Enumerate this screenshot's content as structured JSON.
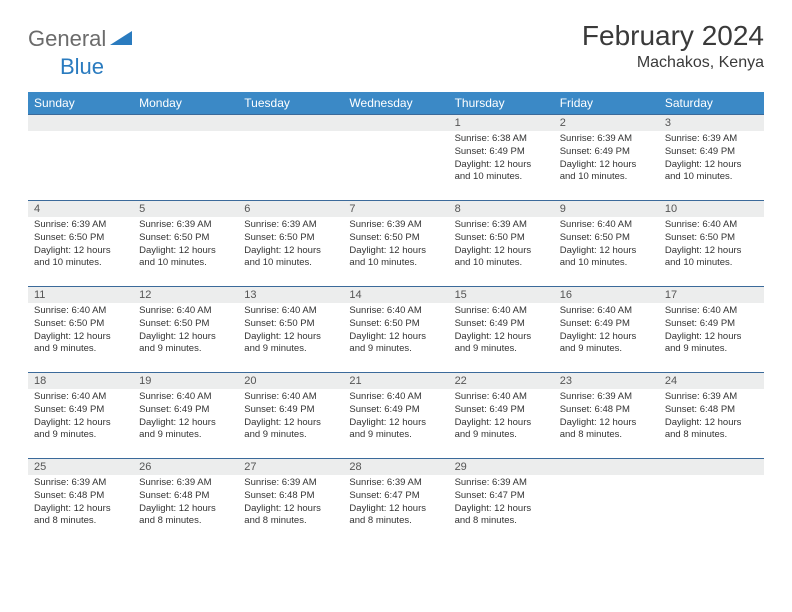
{
  "logo": {
    "part1": "General",
    "part2": "Blue"
  },
  "title": "February 2024",
  "location": "Machakos, Kenya",
  "colors": {
    "header_bg": "#3b89c6",
    "header_text": "#ffffff",
    "row_border": "#3b6a9a",
    "daynum_bg": "#eceded",
    "logo_gray": "#6b6b6b",
    "logo_blue": "#2a7bbf"
  },
  "dow": [
    "Sunday",
    "Monday",
    "Tuesday",
    "Wednesday",
    "Thursday",
    "Friday",
    "Saturday"
  ],
  "weeks": [
    [
      null,
      null,
      null,
      null,
      {
        "n": "1",
        "sr": "Sunrise: 6:38 AM",
        "ss": "Sunset: 6:49 PM",
        "d1": "Daylight: 12 hours",
        "d2": "and 10 minutes."
      },
      {
        "n": "2",
        "sr": "Sunrise: 6:39 AM",
        "ss": "Sunset: 6:49 PM",
        "d1": "Daylight: 12 hours",
        "d2": "and 10 minutes."
      },
      {
        "n": "3",
        "sr": "Sunrise: 6:39 AM",
        "ss": "Sunset: 6:49 PM",
        "d1": "Daylight: 12 hours",
        "d2": "and 10 minutes."
      }
    ],
    [
      {
        "n": "4",
        "sr": "Sunrise: 6:39 AM",
        "ss": "Sunset: 6:50 PM",
        "d1": "Daylight: 12 hours",
        "d2": "and 10 minutes."
      },
      {
        "n": "5",
        "sr": "Sunrise: 6:39 AM",
        "ss": "Sunset: 6:50 PM",
        "d1": "Daylight: 12 hours",
        "d2": "and 10 minutes."
      },
      {
        "n": "6",
        "sr": "Sunrise: 6:39 AM",
        "ss": "Sunset: 6:50 PM",
        "d1": "Daylight: 12 hours",
        "d2": "and 10 minutes."
      },
      {
        "n": "7",
        "sr": "Sunrise: 6:39 AM",
        "ss": "Sunset: 6:50 PM",
        "d1": "Daylight: 12 hours",
        "d2": "and 10 minutes."
      },
      {
        "n": "8",
        "sr": "Sunrise: 6:39 AM",
        "ss": "Sunset: 6:50 PM",
        "d1": "Daylight: 12 hours",
        "d2": "and 10 minutes."
      },
      {
        "n": "9",
        "sr": "Sunrise: 6:40 AM",
        "ss": "Sunset: 6:50 PM",
        "d1": "Daylight: 12 hours",
        "d2": "and 10 minutes."
      },
      {
        "n": "10",
        "sr": "Sunrise: 6:40 AM",
        "ss": "Sunset: 6:50 PM",
        "d1": "Daylight: 12 hours",
        "d2": "and 10 minutes."
      }
    ],
    [
      {
        "n": "11",
        "sr": "Sunrise: 6:40 AM",
        "ss": "Sunset: 6:50 PM",
        "d1": "Daylight: 12 hours",
        "d2": "and 9 minutes."
      },
      {
        "n": "12",
        "sr": "Sunrise: 6:40 AM",
        "ss": "Sunset: 6:50 PM",
        "d1": "Daylight: 12 hours",
        "d2": "and 9 minutes."
      },
      {
        "n": "13",
        "sr": "Sunrise: 6:40 AM",
        "ss": "Sunset: 6:50 PM",
        "d1": "Daylight: 12 hours",
        "d2": "and 9 minutes."
      },
      {
        "n": "14",
        "sr": "Sunrise: 6:40 AM",
        "ss": "Sunset: 6:50 PM",
        "d1": "Daylight: 12 hours",
        "d2": "and 9 minutes."
      },
      {
        "n": "15",
        "sr": "Sunrise: 6:40 AM",
        "ss": "Sunset: 6:49 PM",
        "d1": "Daylight: 12 hours",
        "d2": "and 9 minutes."
      },
      {
        "n": "16",
        "sr": "Sunrise: 6:40 AM",
        "ss": "Sunset: 6:49 PM",
        "d1": "Daylight: 12 hours",
        "d2": "and 9 minutes."
      },
      {
        "n": "17",
        "sr": "Sunrise: 6:40 AM",
        "ss": "Sunset: 6:49 PM",
        "d1": "Daylight: 12 hours",
        "d2": "and 9 minutes."
      }
    ],
    [
      {
        "n": "18",
        "sr": "Sunrise: 6:40 AM",
        "ss": "Sunset: 6:49 PM",
        "d1": "Daylight: 12 hours",
        "d2": "and 9 minutes."
      },
      {
        "n": "19",
        "sr": "Sunrise: 6:40 AM",
        "ss": "Sunset: 6:49 PM",
        "d1": "Daylight: 12 hours",
        "d2": "and 9 minutes."
      },
      {
        "n": "20",
        "sr": "Sunrise: 6:40 AM",
        "ss": "Sunset: 6:49 PM",
        "d1": "Daylight: 12 hours",
        "d2": "and 9 minutes."
      },
      {
        "n": "21",
        "sr": "Sunrise: 6:40 AM",
        "ss": "Sunset: 6:49 PM",
        "d1": "Daylight: 12 hours",
        "d2": "and 9 minutes."
      },
      {
        "n": "22",
        "sr": "Sunrise: 6:40 AM",
        "ss": "Sunset: 6:49 PM",
        "d1": "Daylight: 12 hours",
        "d2": "and 9 minutes."
      },
      {
        "n": "23",
        "sr": "Sunrise: 6:39 AM",
        "ss": "Sunset: 6:48 PM",
        "d1": "Daylight: 12 hours",
        "d2": "and 8 minutes."
      },
      {
        "n": "24",
        "sr": "Sunrise: 6:39 AM",
        "ss": "Sunset: 6:48 PM",
        "d1": "Daylight: 12 hours",
        "d2": "and 8 minutes."
      }
    ],
    [
      {
        "n": "25",
        "sr": "Sunrise: 6:39 AM",
        "ss": "Sunset: 6:48 PM",
        "d1": "Daylight: 12 hours",
        "d2": "and 8 minutes."
      },
      {
        "n": "26",
        "sr": "Sunrise: 6:39 AM",
        "ss": "Sunset: 6:48 PM",
        "d1": "Daylight: 12 hours",
        "d2": "and 8 minutes."
      },
      {
        "n": "27",
        "sr": "Sunrise: 6:39 AM",
        "ss": "Sunset: 6:48 PM",
        "d1": "Daylight: 12 hours",
        "d2": "and 8 minutes."
      },
      {
        "n": "28",
        "sr": "Sunrise: 6:39 AM",
        "ss": "Sunset: 6:47 PM",
        "d1": "Daylight: 12 hours",
        "d2": "and 8 minutes."
      },
      {
        "n": "29",
        "sr": "Sunrise: 6:39 AM",
        "ss": "Sunset: 6:47 PM",
        "d1": "Daylight: 12 hours",
        "d2": "and 8 minutes."
      },
      null,
      null
    ]
  ]
}
